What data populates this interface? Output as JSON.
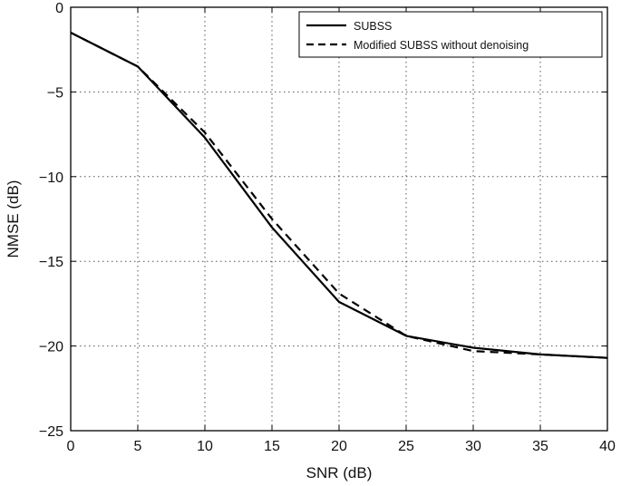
{
  "chart_data": {
    "type": "line",
    "title": "",
    "xlabel": "SNR (dB)",
    "ylabel": "NMSE (dB)",
    "xlim": [
      0,
      40
    ],
    "ylim": [
      -25,
      0
    ],
    "xticks": [
      0,
      5,
      10,
      15,
      20,
      25,
      30,
      35,
      40
    ],
    "yticks": [
      0,
      -5,
      -10,
      -15,
      -20,
      -25
    ],
    "grid": true,
    "legend_position": "top-right",
    "series": [
      {
        "name": "SUBSS",
        "line_style": "solid",
        "color": "#000000",
        "x": [
          0,
          5,
          10,
          15,
          20,
          25,
          30,
          35,
          40
        ],
        "y": [
          -1.5,
          -3.5,
          -7.7,
          -13.0,
          -17.4,
          -19.4,
          -20.1,
          -20.5,
          -20.7
        ]
      },
      {
        "name": "Modified SUBSS without denoising",
        "line_style": "dashed",
        "color": "#000000",
        "x": [
          0,
          5,
          10,
          15,
          20,
          25,
          30,
          35,
          40
        ],
        "y": [
          -1.5,
          -3.5,
          -7.4,
          -12.5,
          -16.9,
          -19.4,
          -20.3,
          -20.5,
          -20.7
        ]
      }
    ]
  }
}
